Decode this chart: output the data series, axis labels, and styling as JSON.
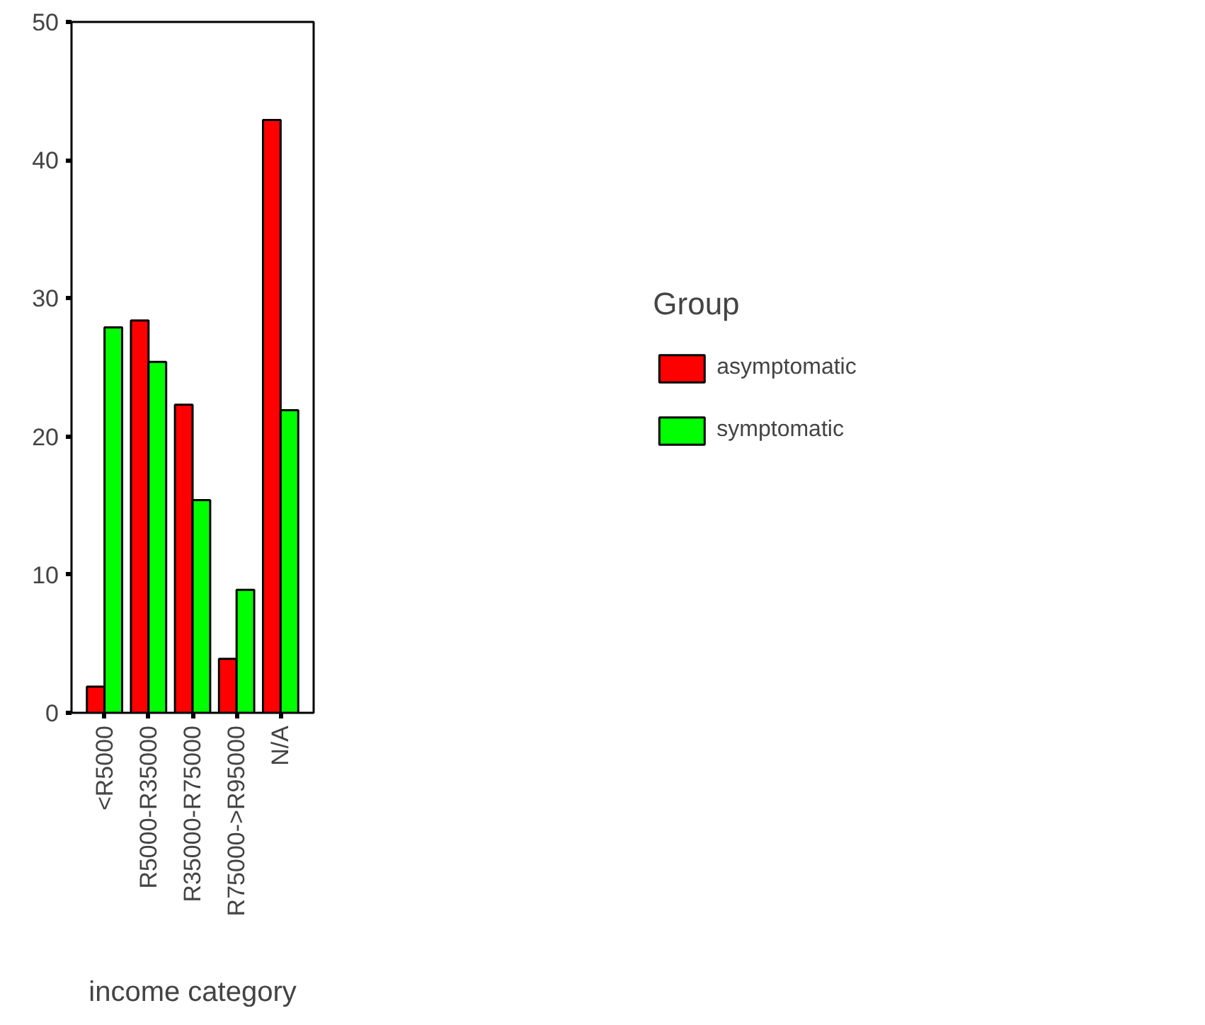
{
  "chart_data": {
    "type": "bar",
    "xlabel": "income category",
    "legend_title": "Group",
    "categories": [
      "<R5000",
      "R5000-R35000",
      "R35000-R75000",
      "R75000->R95000",
      "N/A"
    ],
    "series": [
      {
        "name": "asymptomatic",
        "color": "#ff0000",
        "values": [
          1.9,
          28.4,
          22.3,
          3.9,
          42.9
        ]
      },
      {
        "name": "symptomatic",
        "color": "#00ff00",
        "values": [
          27.9,
          25.4,
          15.4,
          8.9,
          21.9
        ]
      }
    ],
    "ylim": [
      0,
      50
    ],
    "yticks": [
      0,
      10,
      20,
      30,
      40,
      50
    ],
    "grid": false,
    "legend": "right"
  }
}
